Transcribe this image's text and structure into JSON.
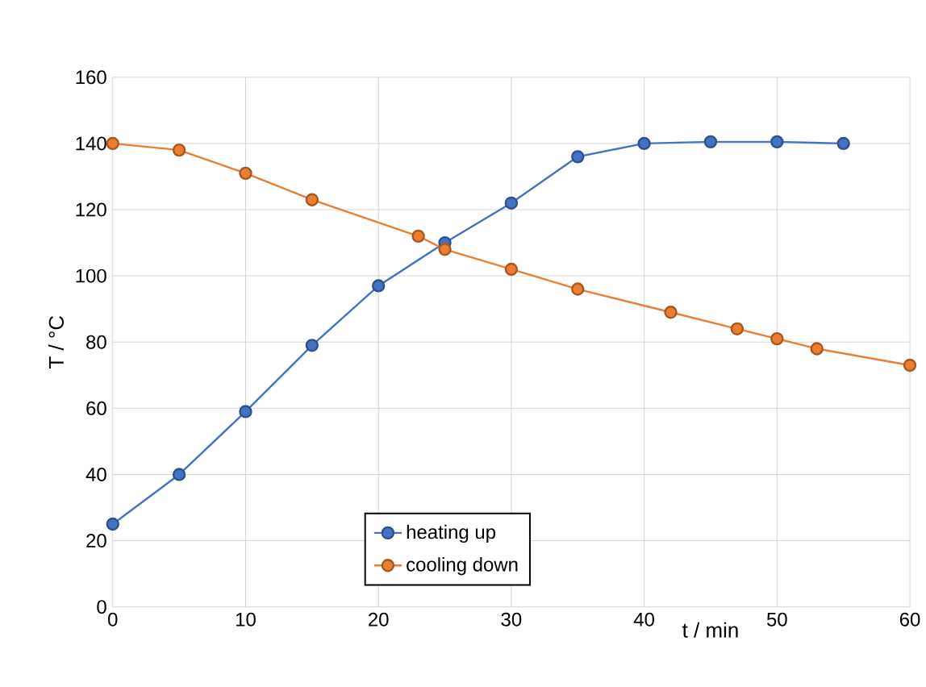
{
  "chart_data": {
    "type": "line",
    "xlabel": "t / min",
    "ylabel": "T / °C",
    "xlim": [
      0,
      60
    ],
    "xticks": [
      0,
      10,
      20,
      30,
      40,
      50,
      60
    ],
    "ylim": [
      0,
      160
    ],
    "yticks": [
      0,
      20,
      40,
      60,
      80,
      100,
      120,
      140,
      160
    ],
    "grid": true,
    "legend": "bottom",
    "marker": "circle",
    "line_style": "solid",
    "series": [
      {
        "name": "heating up",
        "color": "#4472c4",
        "x": [
          0,
          5,
          10,
          15,
          20,
          25,
          30,
          35,
          40,
          45,
          50,
          55
        ],
        "values": [
          25,
          40,
          59,
          79,
          97,
          110,
          122,
          136,
          140,
          140.5,
          140.5,
          140
        ]
      },
      {
        "name": "cooling down",
        "color": "#ed7d31",
        "x": [
          0,
          5,
          10,
          15,
          23,
          25,
          30,
          35,
          42,
          47,
          50,
          53,
          60
        ],
        "values": [
          140,
          138,
          131,
          123,
          112,
          108,
          102,
          96,
          89,
          84,
          81,
          78,
          73
        ]
      }
    ]
  }
}
